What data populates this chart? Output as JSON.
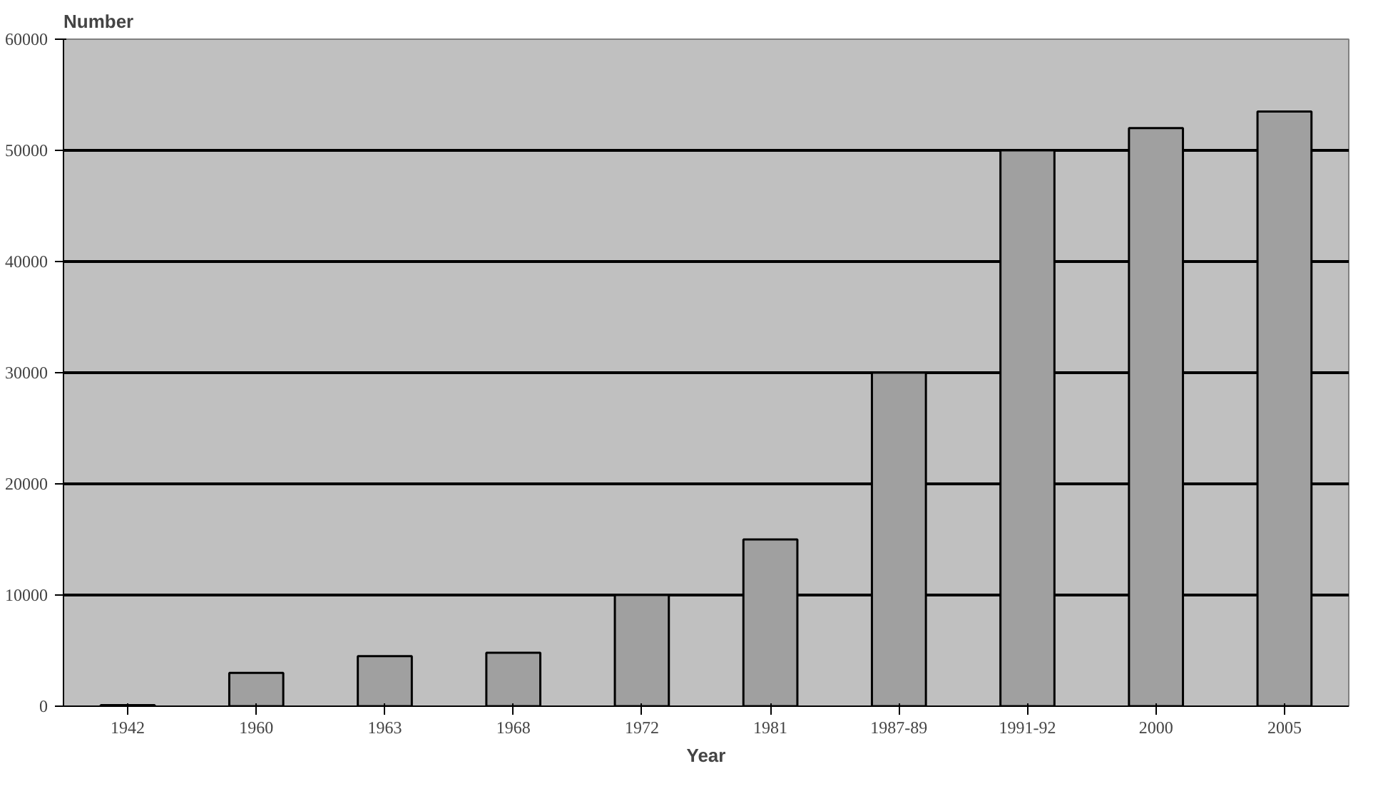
{
  "chart_data": {
    "type": "bar",
    "xlabel": "Year",
    "ylabel": "Number",
    "categories": [
      "1942",
      "1960",
      "1963",
      "1968",
      "1972",
      "1981",
      "1987-89",
      "1991-92",
      "2000",
      "2005"
    ],
    "values": [
      100,
      3000,
      4500,
      4800,
      10000,
      15000,
      30000,
      50000,
      52000,
      53500
    ],
    "color": "#a0a0a0",
    "ylim": [
      0,
      60000
    ],
    "yticks": [
      0,
      10000,
      20000,
      30000,
      40000,
      50000,
      60000
    ],
    "grid": "y"
  }
}
